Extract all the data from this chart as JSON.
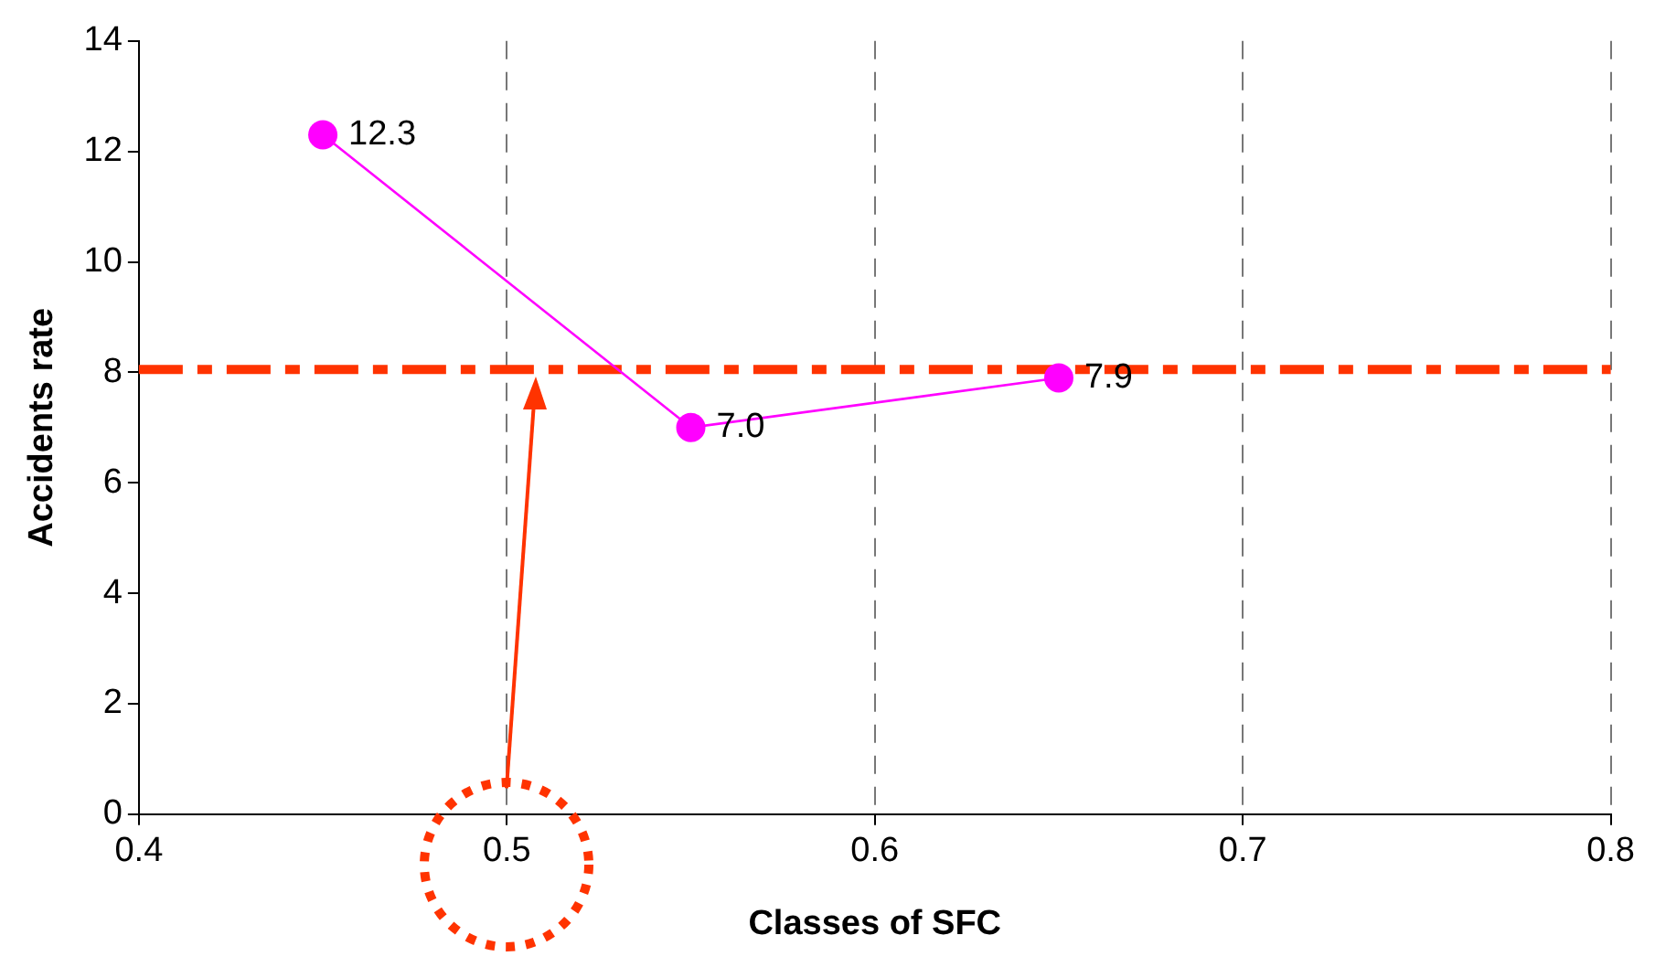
{
  "chart_data": {
    "type": "line",
    "xlabel": "Classes of SFC",
    "ylabel": "Accidents rate",
    "x": [
      0.45,
      0.55,
      0.65
    ],
    "series": [
      {
        "color": "#ff00ff",
        "values": [
          12.3,
          7.0,
          7.9
        ],
        "value_labels": [
          "12.3",
          "7.0",
          "7.9"
        ]
      }
    ],
    "xlim": [
      0.4,
      0.8
    ],
    "xticks": [
      {
        "value": 0.4,
        "label": "0.4"
      },
      {
        "value": 0.5,
        "label": "0.5"
      },
      {
        "value": 0.6,
        "label": "0.6"
      },
      {
        "value": 0.7,
        "label": "0.7"
      },
      {
        "value": 0.8,
        "label": "0.8"
      }
    ],
    "ylim": [
      0,
      14
    ],
    "yticks": [
      0,
      2,
      4,
      6,
      8,
      10,
      12,
      14
    ],
    "grid": "x",
    "marker": "circle",
    "line_style": "solid",
    "legend": false,
    "ref_lines": [
      {
        "axis": "y",
        "value": 8.05,
        "color": "#ff3300",
        "line_style": "dashed"
      }
    ]
  }
}
